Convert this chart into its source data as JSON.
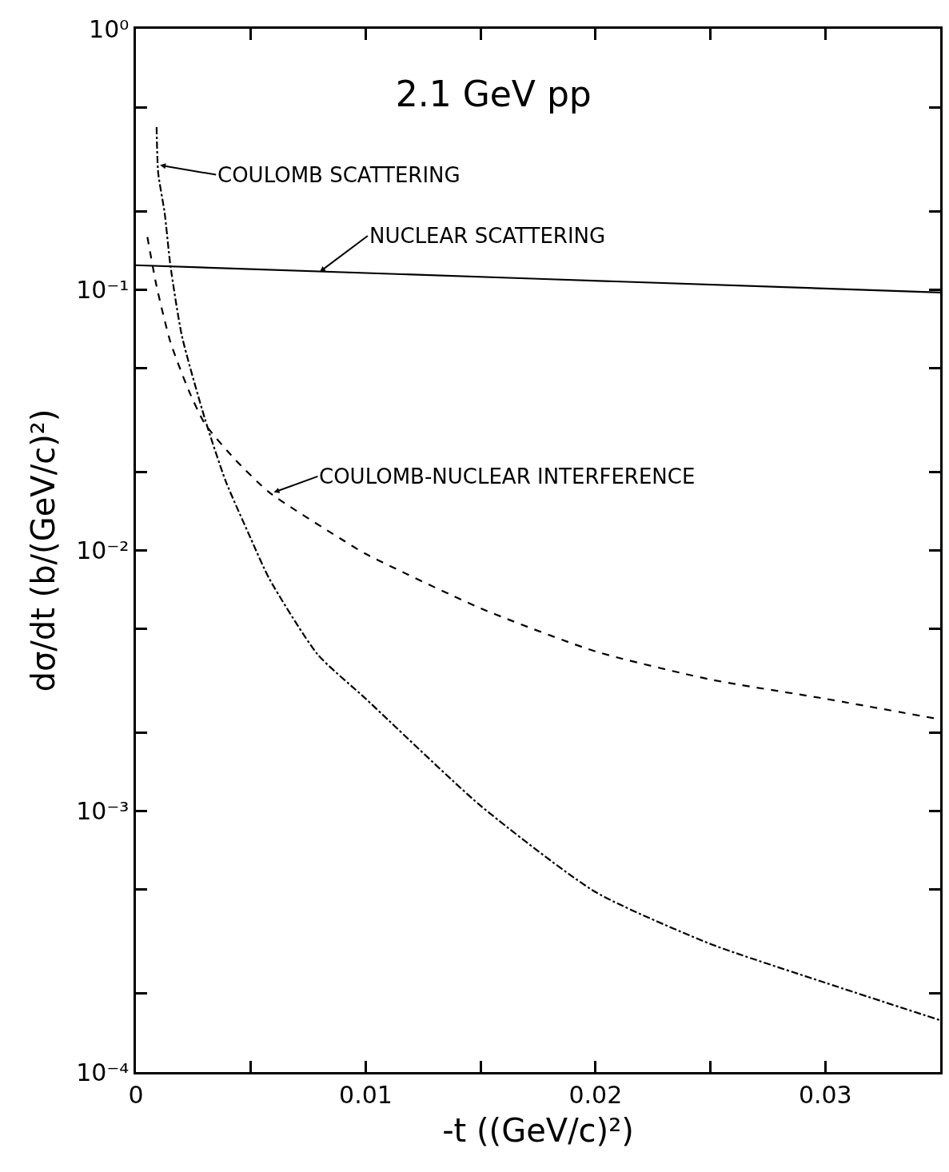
{
  "chart_data": {
    "type": "line",
    "title": "2.1 GeV pp",
    "xlabel": "-t ((GeV/c)²)",
    "ylabel": "dσ/dt (b/(GeV/c)²)",
    "log": "y",
    "legend": false,
    "marker": "none",
    "xlim": [
      0,
      0.035
    ],
    "xticks": [
      0,
      {
        "value": 0.005,
        "label": null
      },
      0.01,
      {
        "value": 0.015,
        "label": null
      },
      0.02,
      {
        "value": 0.025,
        "label": null
      },
      0.03
    ],
    "ylim": [
      0.0001,
      1
    ],
    "yticks": [
      {
        "value": 0.0001,
        "label": "10⁻⁴"
      },
      {
        "value": 0.0002,
        "label": null
      },
      {
        "value": 0.0005,
        "label": null
      },
      {
        "value": 0.001,
        "label": "10⁻³"
      },
      {
        "value": 0.002,
        "label": null
      },
      {
        "value": 0.005,
        "label": null
      },
      {
        "value": 0.01,
        "label": "10⁻²"
      },
      {
        "value": 0.02,
        "label": null
      },
      {
        "value": 0.05,
        "label": null
      },
      {
        "value": 0.1,
        "label": "10⁻¹"
      },
      {
        "value": 0.2,
        "label": null
      },
      {
        "value": 0.5,
        "label": null
      },
      {
        "value": 1,
        "label": "10⁰"
      }
    ],
    "series": [
      {
        "color": "#000000",
        "line_style": "solid",
        "x": [
          0,
          0.0175,
          0.035
        ],
        "values": [
          0.124,
          0.11,
          0.0975
        ]
      },
      {
        "color": "#000000",
        "line_style": "dashdot",
        "x": [
          0.0009,
          0.00097,
          0.00125,
          0.0015,
          0.002,
          0.003,
          0.0039,
          0.005,
          0.0058,
          0.0079,
          0.01,
          0.015,
          0.02,
          0.025,
          0.03,
          0.035
        ],
        "values": [
          0.42,
          0.28,
          0.197,
          0.124,
          0.0665,
          0.032,
          0.0185,
          0.0111,
          0.0078,
          0.004,
          0.0027,
          0.00105,
          0.00049,
          0.00031,
          0.00022,
          0.000158
        ]
      },
      {
        "color": "#000000",
        "line_style": "dashed",
        "x": [
          0.0005,
          0.0009,
          0.0015,
          0.0023,
          0.003,
          0.0043,
          0.0058,
          0.0089,
          0.01,
          0.015,
          0.02,
          0.025,
          0.03,
          0.035
        ],
        "values": [
          0.159,
          0.103,
          0.063,
          0.041,
          0.0306,
          0.0224,
          0.0167,
          0.0111,
          0.0097,
          0.006,
          0.0041,
          0.0032,
          0.0027,
          0.00225
        ]
      }
    ],
    "annotations": [
      {
        "text": "COULOMB SCATTERING",
        "x": 0.00105,
        "y": 0.3
      },
      {
        "text": "NUCLEAR SCATTERING",
        "x": 0.008,
        "y": 0.117
      },
      {
        "text": "COULOMB-NUCLEAR INTERFERENCE",
        "x": 0.006,
        "y": 0.0167
      }
    ]
  }
}
